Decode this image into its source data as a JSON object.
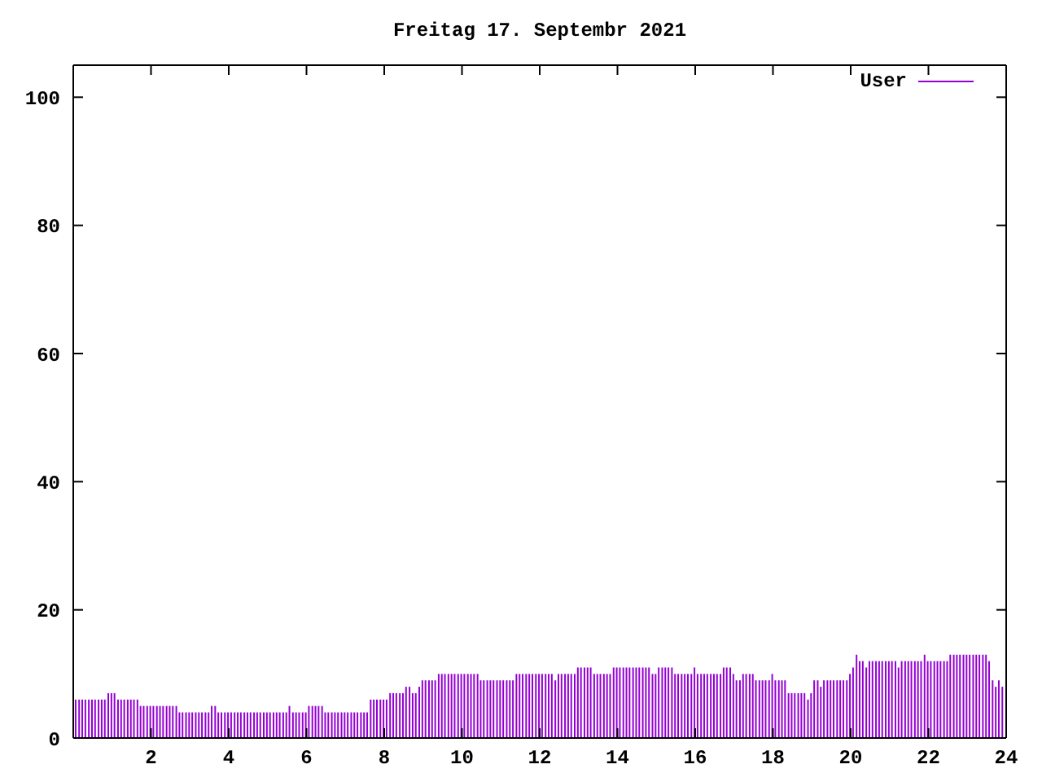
{
  "chart_data": {
    "type": "bar",
    "title": "Freitag 17. Septembr 2021",
    "x": [
      0.08,
      0.17,
      0.25,
      0.33,
      0.42,
      0.5,
      0.58,
      0.67,
      0.75,
      0.83,
      0.92,
      1,
      1.08,
      1.17,
      1.25,
      1.33,
      1.42,
      1.5,
      1.58,
      1.67,
      1.75,
      1.83,
      1.92,
      2,
      2.08,
      2.17,
      2.25,
      2.33,
      2.42,
      2.5,
      2.58,
      2.67,
      2.75,
      2.83,
      2.92,
      3,
      3.08,
      3.17,
      3.25,
      3.33,
      3.42,
      3.5,
      3.58,
      3.67,
      3.75,
      3.83,
      3.92,
      4,
      4.08,
      4.17,
      4.25,
      4.33,
      4.42,
      4.5,
      4.58,
      4.67,
      4.75,
      4.83,
      4.92,
      5,
      5.08,
      5.17,
      5.25,
      5.33,
      5.42,
      5.5,
      5.58,
      5.67,
      5.75,
      5.83,
      5.92,
      6,
      6.08,
      6.17,
      6.25,
      6.33,
      6.42,
      6.5,
      6.58,
      6.67,
      6.75,
      6.83,
      6.92,
      7,
      7.08,
      7.17,
      7.25,
      7.33,
      7.42,
      7.5,
      7.58,
      7.67,
      7.75,
      7.83,
      7.92,
      8,
      8.08,
      8.17,
      8.25,
      8.33,
      8.42,
      8.5,
      8.58,
      8.67,
      8.75,
      8.83,
      8.92,
      9,
      9.08,
      9.17,
      9.25,
      9.33,
      9.42,
      9.5,
      9.58,
      9.67,
      9.75,
      9.83,
      9.92,
      10,
      10.08,
      10.17,
      10.25,
      10.33,
      10.42,
      10.5,
      10.58,
      10.67,
      10.75,
      10.83,
      10.92,
      11,
      11.08,
      11.17,
      11.25,
      11.33,
      11.42,
      11.5,
      11.58,
      11.67,
      11.75,
      11.83,
      11.92,
      12,
      12.08,
      12.17,
      12.25,
      12.33,
      12.42,
      12.5,
      12.58,
      12.67,
      12.75,
      12.83,
      12.92,
      13,
      13.08,
      13.17,
      13.25,
      13.33,
      13.42,
      13.5,
      13.58,
      13.67,
      13.75,
      13.83,
      13.92,
      14,
      14.08,
      14.17,
      14.25,
      14.33,
      14.42,
      14.5,
      14.58,
      14.67,
      14.75,
      14.83,
      14.92,
      15,
      15.08,
      15.17,
      15.25,
      15.33,
      15.42,
      15.5,
      15.58,
      15.67,
      15.75,
      15.83,
      15.92,
      16,
      16.08,
      16.17,
      16.25,
      16.33,
      16.42,
      16.5,
      16.58,
      16.67,
      16.75,
      16.83,
      16.92,
      17,
      17.08,
      17.17,
      17.25,
      17.33,
      17.42,
      17.5,
      17.58,
      17.67,
      17.75,
      17.83,
      17.92,
      18,
      18.08,
      18.17,
      18.25,
      18.33,
      18.42,
      18.5,
      18.58,
      18.67,
      18.75,
      18.83,
      18.92,
      19,
      19.08,
      19.17,
      19.25,
      19.33,
      19.42,
      19.5,
      19.58,
      19.67,
      19.75,
      19.83,
      19.92,
      20,
      20.08,
      20.17,
      20.25,
      20.33,
      20.42,
      20.5,
      20.58,
      20.67,
      20.75,
      20.83,
      20.92,
      21,
      21.08,
      21.17,
      21.25,
      21.33,
      21.42,
      21.5,
      21.58,
      21.67,
      21.75,
      21.83,
      21.92,
      22,
      22.08,
      22.17,
      22.25,
      22.33,
      22.42,
      22.5,
      22.58,
      22.67,
      22.75,
      22.83,
      22.92,
      23,
      23.08,
      23.17,
      23.25,
      23.33,
      23.42,
      23.5,
      23.58,
      23.67,
      23.75,
      23.83,
      23.92
    ],
    "series": [
      {
        "name": "User",
        "color": "#9400d3",
        "values": [
          6,
          6,
          6,
          6,
          6,
          6,
          6,
          6,
          6,
          6,
          7,
          7,
          7,
          6,
          6,
          6,
          6,
          6,
          6,
          6,
          5,
          5,
          5,
          5,
          5,
          5,
          5,
          5,
          5,
          5,
          5,
          5,
          4,
          4,
          4,
          4,
          4,
          4,
          4,
          4,
          4,
          4,
          5,
          5,
          4,
          4,
          4,
          4,
          4,
          4,
          4,
          4,
          4,
          4,
          4,
          4,
          4,
          4,
          4,
          4,
          4,
          4,
          4,
          4,
          4,
          4,
          5,
          4,
          4,
          4,
          4,
          4,
          5,
          5,
          5,
          5,
          5,
          4,
          4,
          4,
          4,
          4,
          4,
          4,
          4,
          4,
          4,
          4,
          4,
          4,
          4,
          6,
          6,
          6,
          6,
          6,
          6,
          7,
          7,
          7,
          7,
          7,
          8,
          8,
          7,
          7,
          8,
          9,
          9,
          9,
          9,
          9,
          10,
          10,
          10,
          10,
          10,
          10,
          10,
          10,
          10,
          10,
          10,
          10,
          10,
          9,
          9,
          9,
          9,
          9,
          9,
          9,
          9,
          9,
          9,
          9,
          10,
          10,
          10,
          10,
          10,
          10,
          10,
          10,
          10,
          10,
          10,
          10,
          9,
          10,
          10,
          10,
          10,
          10,
          10,
          11,
          11,
          11,
          11,
          11,
          10,
          10,
          10,
          10,
          10,
          10,
          11,
          11,
          11,
          11,
          11,
          11,
          11,
          11,
          11,
          11,
          11,
          11,
          10,
          10,
          11,
          11,
          11,
          11,
          11,
          10,
          10,
          10,
          10,
          10,
          10,
          11,
          10,
          10,
          10,
          10,
          10,
          10,
          10,
          10,
          11,
          11,
          11,
          10,
          9,
          9,
          10,
          10,
          10,
          10,
          9,
          9,
          9,
          9,
          9,
          10,
          9,
          9,
          9,
          9,
          7,
          7,
          7,
          7,
          7,
          7,
          6,
          7,
          9,
          9,
          8,
          9,
          9,
          9,
          9,
          9,
          9,
          9,
          9,
          10,
          11,
          13,
          12,
          12,
          11,
          12,
          12,
          12,
          12,
          12,
          12,
          12,
          12,
          12,
          11,
          12,
          12,
          12,
          12,
          12,
          12,
          12,
          13,
          12,
          12,
          12,
          12,
          12,
          12,
          12,
          13,
          13,
          13,
          13,
          13,
          13,
          13,
          13,
          13,
          13,
          13,
          13,
          12,
          9,
          8,
          9,
          8
        ]
      }
    ],
    "xlim": [
      0,
      24
    ],
    "xticks": [
      2,
      4,
      6,
      8,
      10,
      12,
      14,
      16,
      18,
      20,
      22,
      24
    ],
    "ylim": [
      0,
      105
    ],
    "yticks": [
      0,
      20,
      40,
      60,
      80,
      100
    ],
    "legend": "top right"
  }
}
